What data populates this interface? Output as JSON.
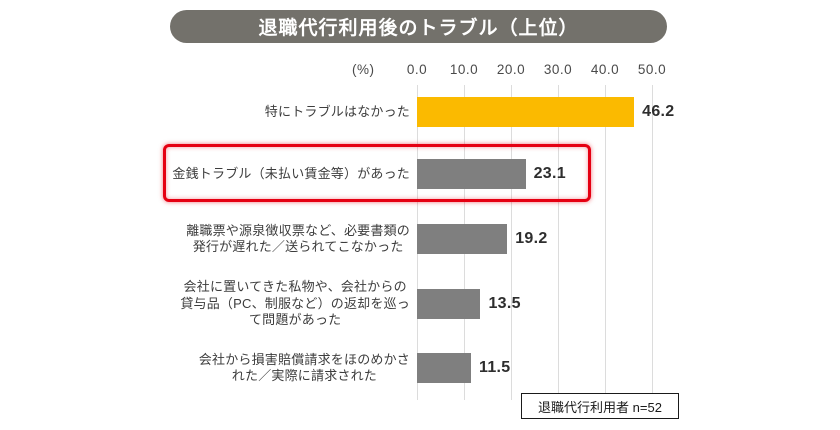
{
  "title": "退職代行利用後のトラブル（上位）",
  "axis": {
    "unit": "(%)",
    "ticks": [
      "0.0",
      "10.0",
      "20.0",
      "30.0",
      "40.0",
      "50.0"
    ]
  },
  "rows": [
    {
      "label": "特にトラブルはなかった",
      "value_label": "46.2"
    },
    {
      "label": "金銭トラブル（未払い賃金等）があった",
      "value_label": "23.1"
    },
    {
      "label": "離職票や源泉徴収票など、必要書類の\n発行が遅れた／送られてこなかった",
      "value_label": "19.2"
    },
    {
      "label": "会社に置いてきた私物や、会社からの\n貸与品（PC、制服など）の返却を巡っ\nて問題があった",
      "value_label": "13.5"
    },
    {
      "label": "会社から損害賠償請求をほのめかさ\nれた／実際に請求された",
      "value_label": "11.5"
    }
  ],
  "note": "退職代行利用者 n=52",
  "colors": {
    "banner_bg": "#73716B",
    "highlight_bar": "#FBBA00",
    "bar": "#7F7F7F",
    "annotation_red": "#E50012",
    "gridline": "#DCDCDC"
  },
  "chart_data": {
    "type": "bar",
    "orientation": "horizontal",
    "title": "退職代行利用後のトラブル（上位）",
    "xlabel": "(%)",
    "xlim": [
      0,
      50
    ],
    "x_ticks": [
      0,
      10,
      20,
      30,
      40,
      50
    ],
    "grid": true,
    "legend": false,
    "categories": [
      "特にトラブルはなかった",
      "金銭トラブル（未払い賃金等）があった",
      "離職票や源泉徴収票など、必要書類の発行が遅れた／送られてこなかった",
      "会社に置いてきた私物や、会社からの貸与品（PC、制服など）の返却を巡って問題があった",
      "会社から損害賠償請求をほのめかされた／実際に請求された"
    ],
    "values": [
      46.2,
      23.1,
      19.2,
      13.5,
      11.5
    ],
    "bar_colors": [
      "#FBBA00",
      "#7F7F7F",
      "#7F7F7F",
      "#7F7F7F",
      "#7F7F7F"
    ],
    "highlighted_index": 1,
    "annotation": "red box around 金銭トラブル（未払い賃金等）があった row",
    "note": "退職代行利用者 n=52"
  }
}
